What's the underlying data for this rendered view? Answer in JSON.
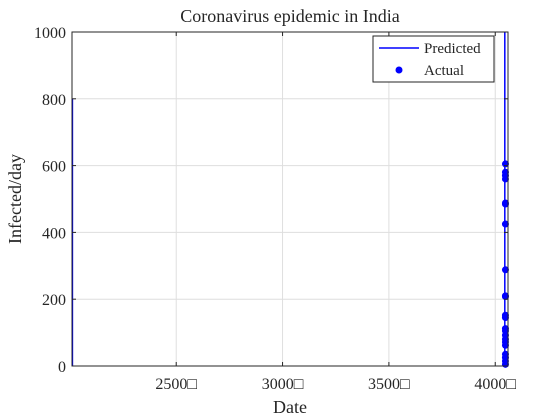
{
  "chart_data": {
    "type": "line",
    "title": "Coronavirus epidemic in India",
    "xlabel": "Date",
    "ylabel": "Infected/day",
    "xlim": [
      2010,
      4060
    ],
    "ylim": [
      0,
      1000
    ],
    "xticks": [
      2500,
      3000,
      3500,
      4000
    ],
    "xtick_labels": [
      "2500□",
      "3000□",
      "3500□",
      "4000□"
    ],
    "yticks": [
      0,
      200,
      400,
      600,
      800,
      1000
    ],
    "ytick_labels": [
      "0",
      "200",
      "400",
      "600",
      "800",
      "1000"
    ],
    "grid": true,
    "legend_position": "top-right",
    "series": [
      {
        "name": "Predicted",
        "kind": "line",
        "color": "#0000ff",
        "points": [
          [
            2012,
            0
          ],
          [
            2012,
            800
          ],
          [
            4045,
            0
          ],
          [
            4045,
            1000
          ]
        ]
      },
      {
        "name": "Actual",
        "kind": "scatter",
        "color": "#0000ff",
        "points": [
          [
            4048,
            605
          ],
          [
            4048,
            580
          ],
          [
            4048,
            570
          ],
          [
            4048,
            560
          ],
          [
            4048,
            488
          ],
          [
            4048,
            485
          ],
          [
            4048,
            425
          ],
          [
            4048,
            288
          ],
          [
            4048,
            210
          ],
          [
            4048,
            208
          ],
          [
            4048,
            152
          ],
          [
            4048,
            145
          ],
          [
            4048,
            112
          ],
          [
            4048,
            105
          ],
          [
            4048,
            92
          ],
          [
            4048,
            80
          ],
          [
            4048,
            72
          ],
          [
            4048,
            62
          ],
          [
            4048,
            35
          ],
          [
            4048,
            25
          ],
          [
            4048,
            15
          ],
          [
            4048,
            5
          ]
        ]
      }
    ]
  }
}
